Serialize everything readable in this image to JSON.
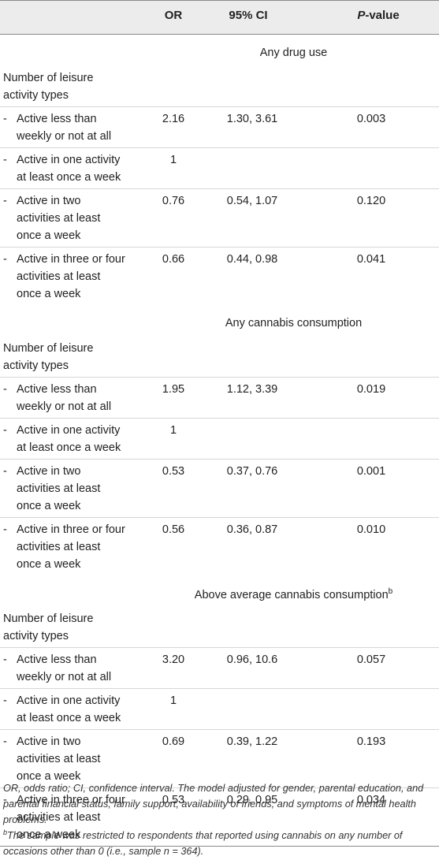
{
  "header": {
    "or": "OR",
    "ci": "95% CI",
    "p_italic": "P",
    "p_rest": "-value"
  },
  "sections": [
    {
      "title": "Any drug use",
      "superscript": "",
      "group_label_line1": "Number of leisure",
      "group_label_line2": "activity types",
      "rows": [
        {
          "lines": [
            "Active less than",
            "weekly or not at all"
          ],
          "or": "2.16",
          "ci": "1.30, 3.61",
          "p": "0.003"
        },
        {
          "lines": [
            "Active in one activity",
            "at least once a week"
          ],
          "or": "1",
          "ci": "",
          "p": ""
        },
        {
          "lines": [
            "Active in two",
            "activities at least",
            "once a week"
          ],
          "or": "0.76",
          "ci": "0.54, 1.07",
          "p": "0.120"
        },
        {
          "lines": [
            "Active in three or four",
            "activities at least",
            "once a week"
          ],
          "or": "0.66",
          "ci": "0.44, 0.98",
          "p": "0.041"
        }
      ]
    },
    {
      "title": "Any cannabis consumption",
      "superscript": "",
      "group_label_line1": "Number of leisure",
      "group_label_line2": "activity types",
      "rows": [
        {
          "lines": [
            "Active less than",
            "weekly or not at all"
          ],
          "or": "1.95",
          "ci": "1.12, 3.39",
          "p": "0.019"
        },
        {
          "lines": [
            "Active in one activity",
            "at least once a week"
          ],
          "or": "1",
          "ci": "",
          "p": ""
        },
        {
          "lines": [
            "Active in two",
            "activities at least",
            "once a week"
          ],
          "or": "0.53",
          "ci": "0.37, 0.76",
          "p": "0.001"
        },
        {
          "lines": [
            "Active in three or four",
            "activities at least",
            "once a week"
          ],
          "or": "0.56",
          "ci": "0.36, 0.87",
          "p": "0.010"
        }
      ]
    },
    {
      "title": "Above average cannabis consumption",
      "superscript": "b",
      "group_label_line1": "Number of leisure",
      "group_label_line2": "activity types",
      "rows": [
        {
          "lines": [
            "Active less than",
            "weekly or not at all"
          ],
          "or": "3.20",
          "ci": "0.96, 10.6",
          "p": "0.057"
        },
        {
          "lines": [
            "Active in one activity",
            "at least once a week"
          ],
          "or": "1",
          "ci": "",
          "p": ""
        },
        {
          "lines": [
            "Active in two",
            "activities at least",
            "once a week"
          ],
          "or": "0.69",
          "ci": "0.39, 1.22",
          "p": "0.193"
        },
        {
          "lines": [
            "Active in three or four",
            "activities at least",
            "once a week"
          ],
          "or": "0.53",
          "ci": "0.29, 0.95",
          "p": "0.034"
        }
      ]
    }
  ],
  "footnotes": {
    "note1": "OR, odds ratio; CI, confidence interval. The model adjusted for gender, parental education, and parental financial status, family support, availability of friends, and symptoms of mental health problems.",
    "note2_marker": "b",
    "note2": "The sample was restricted to respondents that reported using cannabis on any number of occasions other than 0 (i.e., sample n = 364)."
  }
}
